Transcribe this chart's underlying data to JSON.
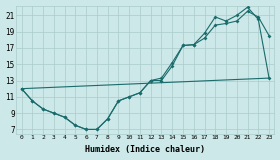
{
  "xlabel": "Humidex (Indice chaleur)",
  "background_color": "#cce8e8",
  "line_color": "#1a6b6b",
  "grid_color": "#aacccc",
  "xlim": [
    -0.5,
    23.5
  ],
  "ylim": [
    6.5,
    22.2
  ],
  "xtick_labels": [
    "0",
    "1",
    "2",
    "3",
    "4",
    "5",
    "6",
    "7",
    "8",
    "9",
    "10",
    "11",
    "12",
    "13",
    "14",
    "15",
    "16",
    "17",
    "18",
    "19",
    "20",
    "21",
    "22",
    "23"
  ],
  "ytick_values": [
    7,
    9,
    11,
    13,
    15,
    17,
    19,
    21
  ],
  "line1_x": [
    0,
    1,
    2,
    3,
    4,
    5,
    6,
    7,
    8,
    9,
    10,
    11,
    12,
    13,
    14,
    15,
    16,
    17,
    18,
    19,
    20,
    21,
    22,
    23
  ],
  "line1_y": [
    12.0,
    10.5,
    9.5,
    9.0,
    8.5,
    7.5,
    7.0,
    7.0,
    8.3,
    10.5,
    11.0,
    11.5,
    13.0,
    13.0,
    14.8,
    17.3,
    17.4,
    18.2,
    19.8,
    20.0,
    20.3,
    21.5,
    20.8,
    18.5
  ],
  "line2_x": [
    0,
    1,
    2,
    3,
    4,
    5,
    6,
    7,
    8,
    9,
    10,
    11,
    12,
    13,
    14,
    15,
    16,
    17,
    18,
    19,
    20,
    21,
    22,
    23
  ],
  "line2_y": [
    12.0,
    10.5,
    9.5,
    9.0,
    8.5,
    7.5,
    7.0,
    7.0,
    8.3,
    10.5,
    11.0,
    11.5,
    13.0,
    13.3,
    15.2,
    17.3,
    17.4,
    18.8,
    20.8,
    20.3,
    21.0,
    22.0,
    20.5,
    13.3
  ],
  "line3_x": [
    0,
    23
  ],
  "line3_y": [
    12.0,
    13.3
  ],
  "markersize": 2.0,
  "linewidth": 0.8
}
